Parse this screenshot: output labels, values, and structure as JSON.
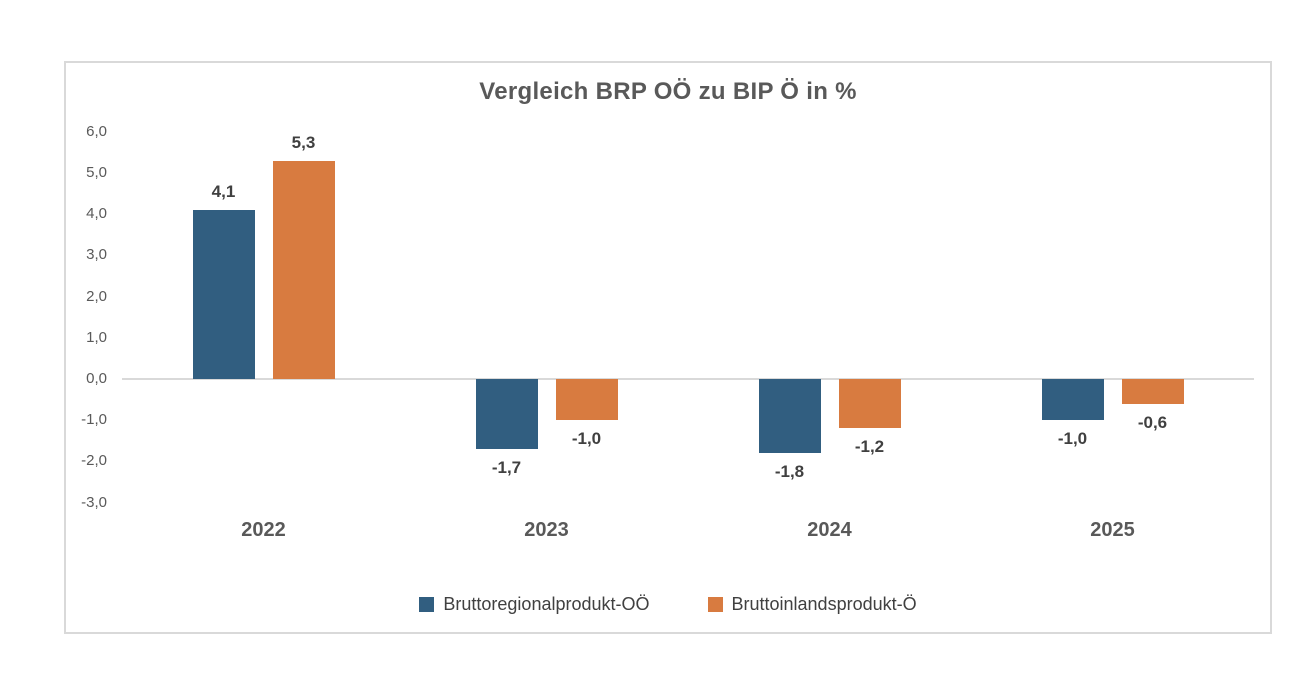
{
  "chart_data": {
    "type": "bar",
    "title": "Vergleich BRP OÖ zu BIP Ö in %",
    "categories": [
      "2022",
      "2023",
      "2024",
      "2025"
    ],
    "series": [
      {
        "name": "Bruttoregionalprodukt-OÖ",
        "color": "#315E80",
        "values": [
          4.1,
          -1.7,
          -1.8,
          -1.0
        ],
        "labels": [
          "4,1",
          "-1,7",
          "-1,8",
          "-1,0"
        ]
      },
      {
        "name": "Bruttoinlandsprodukt-Ö",
        "color": "#D87B40",
        "values": [
          5.3,
          -1.0,
          -1.2,
          -0.6
        ],
        "labels": [
          "5,3",
          "-1,0",
          "-1,2",
          "-0,6"
        ]
      }
    ],
    "y_axis": {
      "min": -3.0,
      "max": 6.0,
      "step": 1.0,
      "tick_labels": [
        "6,0",
        "5,0",
        "4,0",
        "3,0",
        "2,0",
        "1,0",
        "0,0",
        "-1,0",
        "-2,0",
        "-3,0"
      ]
    },
    "grid": false,
    "legend_position": "bottom",
    "decimal_separator": ",",
    "colors": {
      "series_blue": "#315E80",
      "series_orange": "#D87B40",
      "axis_line": "#D9D9D9",
      "card_border": "#D9D9D9",
      "title_text": "#595959",
      "tick_text": "#595959",
      "value_label_text": "#404040",
      "legend_text": "#404040"
    }
  }
}
